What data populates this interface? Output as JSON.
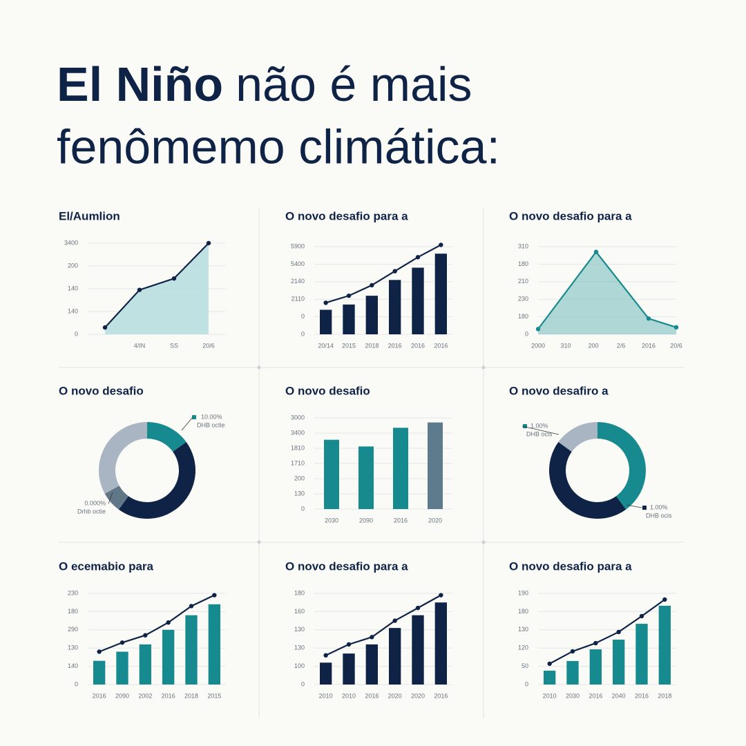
{
  "header": {
    "title_bold": "El Niño",
    "title_line1": "não é mais",
    "title_line2": "fenômemo climática:"
  },
  "chart_data": [
    {
      "type": "area",
      "title": "El/Aumlion",
      "categories": [
        null,
        "4/IN",
        "SS",
        "20/6"
      ],
      "values": [
        30,
        195,
        245,
        400
      ],
      "color": "#bcdfe0",
      "line_color": "#0f2347",
      "ylim": [
        0,
        400
      ],
      "yticks": [
        0,
        {
          "value": 100,
          "label": "140"
        },
        {
          "value": 200,
          "label": "140"
        },
        {
          "value": 300,
          "label": "200"
        },
        {
          "value": 400,
          "label": "3400"
        }
      ],
      "grid": true
    },
    {
      "type": "combo",
      "title": "O novo desafio para a",
      "categories": [
        "20/14",
        "2015",
        "2018",
        "2016",
        "2016",
        "2016"
      ],
      "ylim": [
        0,
        5.2
      ],
      "yticks": [
        0,
        {
          "value": 1,
          "label": "0"
        },
        {
          "value": 2,
          "label": "2110"
        },
        {
          "value": 3,
          "label": "2140"
        },
        {
          "value": 4,
          "label": "5400"
        },
        {
          "value": 5,
          "label": "5900"
        }
      ],
      "grid": true,
      "series": [
        {
          "kind": "bar",
          "color": "#0f2347",
          "values": [
            1.4,
            1.7,
            2.2,
            3.1,
            3.8,
            4.6
          ]
        },
        {
          "kind": "line",
          "color": "#0f2347",
          "values": [
            1.8,
            2.2,
            2.8,
            3.6,
            4.4,
            5.1
          ]
        }
      ]
    },
    {
      "type": "area",
      "title": "O novo desafio para a",
      "x": [
        0,
        2.1,
        4,
        5
      ],
      "values": [
        0.3,
        4.7,
        0.9,
        0.4
      ],
      "color": "#7cc0c0",
      "line_color": "#168a8e",
      "xlim": [
        0,
        5
      ],
      "xticks": [
        {
          "value": 0,
          "label": "2000"
        },
        {
          "value": 1,
          "label": "310"
        },
        {
          "value": 2,
          "label": "200"
        },
        {
          "value": 3,
          "label": "2/6"
        },
        {
          "value": 4,
          "label": "2016"
        },
        {
          "value": 5,
          "label": "20/6"
        }
      ],
      "ylim": [
        0,
        5.2
      ],
      "yticks": [
        0,
        {
          "value": 1,
          "label": "180"
        },
        {
          "value": 2,
          "label": "230"
        },
        {
          "value": 3,
          "label": "210"
        },
        {
          "value": 4,
          "label": "180"
        },
        {
          "value": 5,
          "label": "310"
        }
      ],
      "grid": true
    },
    {
      "type": "donut",
      "title": "O novo desafio",
      "values": [
        15,
        45,
        7,
        33
      ],
      "colors": [
        "#168a8e",
        "#0f2347",
        "#5f7787",
        "#a9b5c2"
      ],
      "annotations": [
        {
          "value_text": "10.00%",
          "text": "DHB octie"
        },
        {
          "value_text": "0.000%",
          "text": "Drhb octie"
        }
      ]
    },
    {
      "type": "bar",
      "title": "O novo desafio",
      "categories": [
        "2030",
        "2090",
        "2016",
        "2020"
      ],
      "values": [
        4.56,
        4.12,
        5.35,
        5.7
      ],
      "colors": [
        "#168a8e",
        "#168a8e",
        "#168a8e",
        "#5d7b8c"
      ],
      "ylim": [
        0,
        6
      ],
      "yticks": [
        0,
        {
          "value": 1,
          "label": "130"
        },
        {
          "value": 2,
          "label": "200"
        },
        {
          "value": 3,
          "label": "1710"
        },
        {
          "value": 4,
          "label": "1810"
        },
        {
          "value": 5,
          "label": "3400"
        },
        {
          "value": 6,
          "label": "3000"
        }
      ],
      "grid": true
    },
    {
      "type": "donut",
      "title": "O novo desafiro a",
      "values": [
        40,
        45,
        15
      ],
      "colors": [
        "#168a8e",
        "#0f2347",
        "#a9b5c2"
      ],
      "annotations": [
        {
          "value_text": "1.00%",
          "text": "DHB ocis"
        },
        {
          "value_text": "1.00%",
          "text": "DHB ocis"
        }
      ]
    },
    {
      "type": "combo",
      "title": "O ecemabio para",
      "categories": [
        "2016",
        "2090",
        "2002",
        "2016",
        "2018",
        "2015"
      ],
      "ylim": [
        0,
        5
      ],
      "yticks": [
        0,
        {
          "value": 1,
          "label": "140"
        },
        {
          "value": 2,
          "label": "130"
        },
        {
          "value": 3,
          "label": "290"
        },
        {
          "value": 4,
          "label": "180"
        },
        {
          "value": 5,
          "label": "230"
        }
      ],
      "grid": true,
      "series": [
        {
          "kind": "bar",
          "color": "#168a8e",
          "values": [
            1.3,
            1.8,
            2.2,
            3.0,
            3.8,
            4.4
          ]
        },
        {
          "kind": "line",
          "color": "#0f2347",
          "values": [
            1.8,
            2.3,
            2.7,
            3.4,
            4.3,
            4.9
          ]
        }
      ]
    },
    {
      "type": "combo",
      "title": "O novo desafio para a",
      "categories": [
        "2010",
        "2010",
        "2016",
        "2020",
        "2020",
        "2016"
      ],
      "ylim": [
        0,
        5
      ],
      "yticks": [
        0,
        {
          "value": 1,
          "label": "100"
        },
        {
          "value": 2,
          "label": "130"
        },
        {
          "value": 3,
          "label": "130"
        },
        {
          "value": 4,
          "label": "160"
        },
        {
          "value": 5,
          "label": "180"
        }
      ],
      "grid": true,
      "series": [
        {
          "kind": "bar",
          "color": "#0f2347",
          "values": [
            1.2,
            1.7,
            2.2,
            3.1,
            3.8,
            4.5
          ]
        },
        {
          "kind": "line",
          "color": "#0f2347",
          "values": [
            1.6,
            2.2,
            2.6,
            3.5,
            4.2,
            4.9
          ]
        }
      ]
    },
    {
      "type": "combo",
      "title": "O novo desafio para a",
      "categories": [
        "2010",
        "2030",
        "2016",
        "2040",
        "2016",
        "2018"
      ],
      "ylim": [
        0,
        5
      ],
      "yticks": [
        0,
        {
          "value": 1,
          "label": "50"
        },
        {
          "value": 2,
          "label": "120"
        },
        {
          "value": 3,
          "label": "130"
        },
        {
          "value": 4,
          "label": "180"
        },
        {
          "value": 5,
          "label": "190"
        }
      ],
      "grid": true,
      "series": [
        {
          "kind": "bar",
          "color": "#168a8e",
          "values": [
            0.76,
            1.29,
            1.93,
            2.46,
            3.33,
            4.32
          ]
        },
        {
          "kind": "line",
          "color": "#0f2347",
          "values": [
            1.14,
            1.82,
            2.27,
            2.88,
            3.75,
            4.66
          ]
        }
      ]
    }
  ]
}
